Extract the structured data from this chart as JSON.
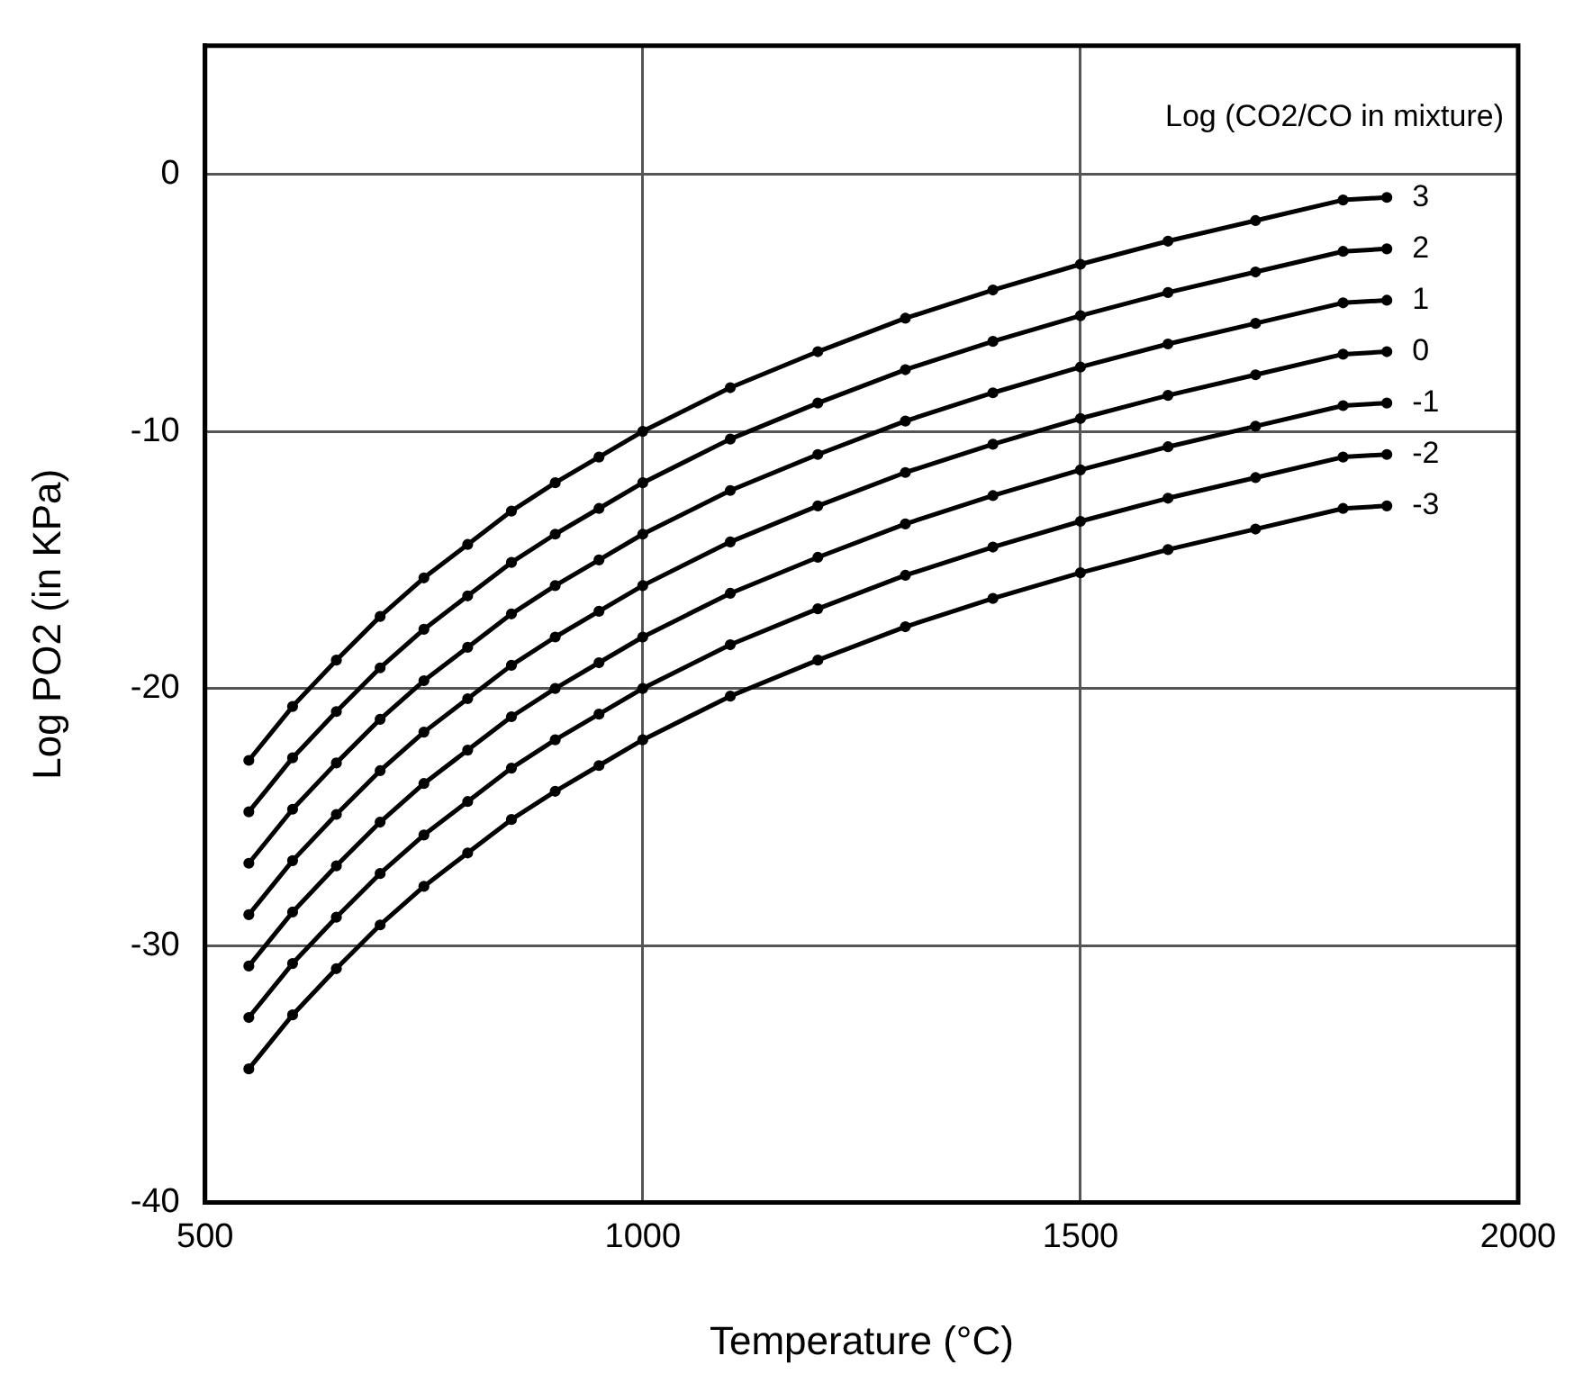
{
  "chart_data": {
    "type": "line",
    "xlabel": "Temperature (°C)",
    "ylabel": "Log PO2 (in KPa)",
    "legend_title": "Log (CO2/CO in mixture)",
    "x": [
      550,
      600,
      650,
      700,
      750,
      800,
      850,
      900,
      950,
      1000,
      1100,
      1200,
      1300,
      1400,
      1500,
      1600,
      1700,
      1800,
      1850
    ],
    "series": [
      {
        "name": "3",
        "color": "#000000",
        "values": [
          -22.8,
          -20.7,
          -18.9,
          -17.2,
          -15.7,
          -14.4,
          -13.1,
          -12.0,
          -11.0,
          -10.0,
          -8.3,
          -6.9,
          -5.6,
          -4.5,
          -3.5,
          -2.6,
          -1.8,
          -1.0,
          -0.9
        ]
      },
      {
        "name": "2",
        "color": "#000000",
        "values": [
          -24.8,
          -22.7,
          -20.9,
          -19.2,
          -17.7,
          -16.4,
          -15.1,
          -14.0,
          -13.0,
          -12.0,
          -10.3,
          -8.9,
          -7.6,
          -6.5,
          -5.5,
          -4.6,
          -3.8,
          -3.0,
          -2.9
        ]
      },
      {
        "name": "1",
        "color": "#000000",
        "values": [
          -26.8,
          -24.7,
          -22.9,
          -21.2,
          -19.7,
          -18.4,
          -17.1,
          -16.0,
          -15.0,
          -14.0,
          -12.3,
          -10.9,
          -9.6,
          -8.5,
          -7.5,
          -6.6,
          -5.8,
          -5.0,
          -4.9
        ]
      },
      {
        "name": "0",
        "color": "#000000",
        "values": [
          -28.8,
          -26.7,
          -24.9,
          -23.2,
          -21.7,
          -20.4,
          -19.1,
          -18.0,
          -17.0,
          -16.0,
          -14.3,
          -12.9,
          -11.6,
          -10.5,
          -9.5,
          -8.6,
          -7.8,
          -7.0,
          -6.9
        ]
      },
      {
        "name": "-1",
        "color": "#000000",
        "values": [
          -30.8,
          -28.7,
          -26.9,
          -25.2,
          -23.7,
          -22.4,
          -21.1,
          -20.0,
          -19.0,
          -18.0,
          -16.3,
          -14.9,
          -13.6,
          -12.5,
          -11.5,
          -10.6,
          -9.8,
          -9.0,
          -8.9
        ]
      },
      {
        "name": "-2",
        "color": "#000000",
        "values": [
          -32.8,
          -30.7,
          -28.9,
          -27.2,
          -25.7,
          -24.4,
          -23.1,
          -22.0,
          -21.0,
          -20.0,
          -18.3,
          -16.9,
          -15.6,
          -14.5,
          -13.5,
          -12.6,
          -11.8,
          -11.0,
          -10.9
        ]
      },
      {
        "name": "-3",
        "color": "#000000",
        "values": [
          -34.8,
          -32.7,
          -30.9,
          -29.2,
          -27.7,
          -26.4,
          -25.1,
          -24.0,
          -23.0,
          -22.0,
          -20.3,
          -18.9,
          -17.6,
          -16.5,
          -15.5,
          -14.6,
          -13.8,
          -13.0,
          -12.9
        ]
      }
    ],
    "xlim": [
      500,
      2000
    ],
    "xticks": [
      500,
      1000,
      1500,
      2000
    ],
    "ylim": [
      -40,
      5
    ],
    "yticks": [
      -40,
      -30,
      -20,
      -10,
      0
    ],
    "grid": true,
    "legend": false,
    "marker": "circle",
    "line_style": "solid"
  }
}
